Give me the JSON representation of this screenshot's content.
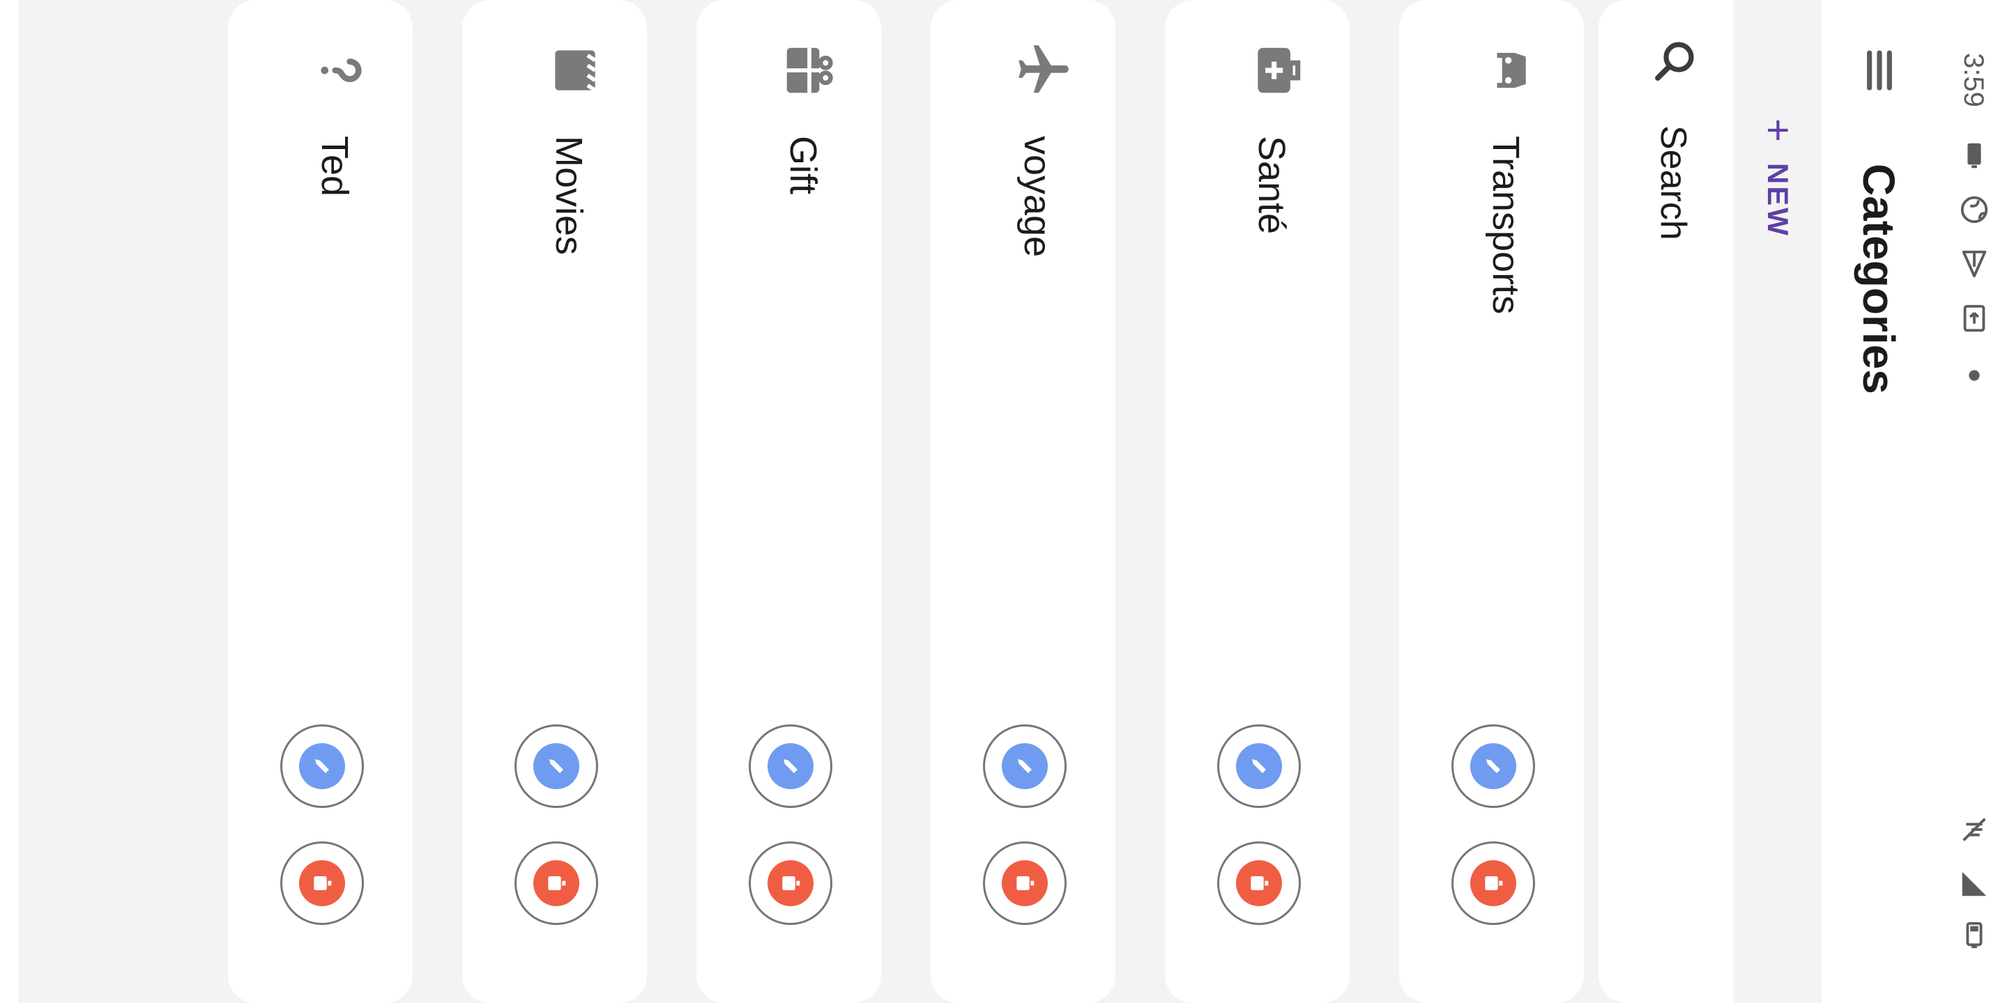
{
  "status_bar": {
    "time": "3:59",
    "left_icons": [
      "battery-saver-icon",
      "vpn-globe-icon",
      "send-icon",
      "cast-icon",
      "dot-indicator-icon"
    ],
    "right_icons": [
      "vibrate-off-icon",
      "signal-icon",
      "battery-icon"
    ]
  },
  "app_bar": {
    "menu_icon": "menu-icon",
    "title": "Categories"
  },
  "new_button": {
    "label": "NEW",
    "icon": "plus-icon",
    "color": "#5e3fa5"
  },
  "search": {
    "icon": "search-icon",
    "placeholder": "Search",
    "value": ""
  },
  "categories": [
    {
      "name": "Transports",
      "icon": "car-icon"
    },
    {
      "name": "Santé",
      "icon": "medical-bag-icon"
    },
    {
      "name": "voyage",
      "icon": "airplane-icon"
    },
    {
      "name": "Gift",
      "icon": "gift-icon"
    },
    {
      "name": "Movies",
      "icon": "movie-icon"
    },
    {
      "name": "Ted",
      "icon": "help-icon"
    }
  ],
  "actions": {
    "edit_icon": "edit-pencil-icon",
    "delete_icon": "delete-icon",
    "edit_color": "#6f9cf0",
    "delete_color": "#ef5e43"
  }
}
